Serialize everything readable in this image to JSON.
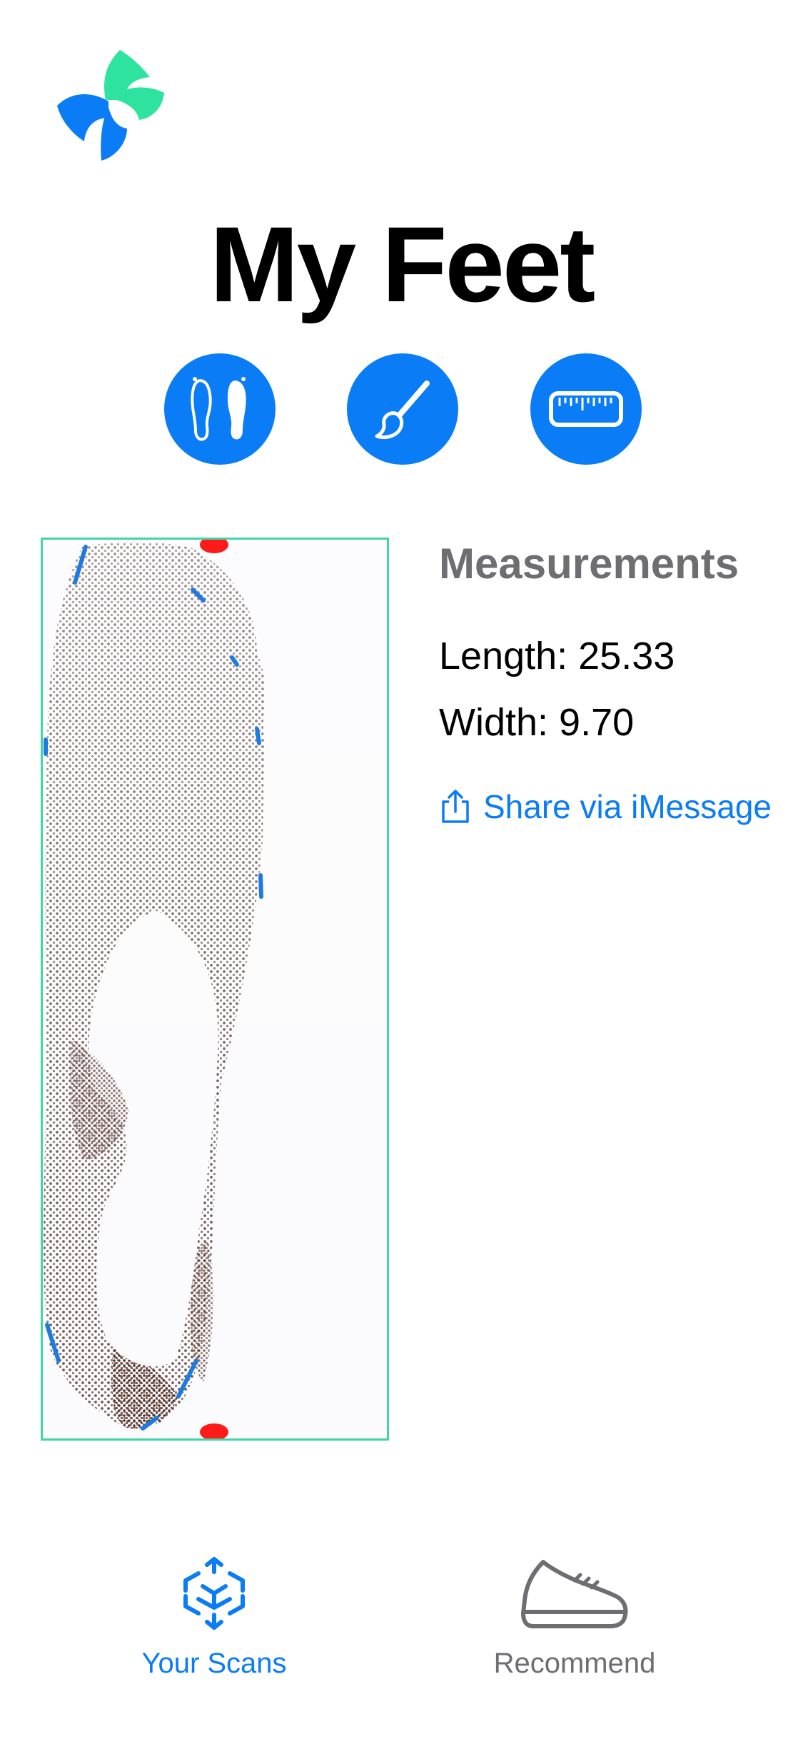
{
  "app": {
    "logo_icon": "app-logo",
    "accent_color": "#0a7cf6",
    "logo_colors": [
      "#2ee3a0",
      "#0a7cf6"
    ]
  },
  "header": {
    "title": "My Feet"
  },
  "actions": [
    {
      "icon": "feet-icon"
    },
    {
      "icon": "paintbrush-icon"
    },
    {
      "icon": "ruler-icon"
    }
  ],
  "scan": {
    "image": "foot-scan-point-cloud",
    "border_color": "#3fd6a6"
  },
  "measurements": {
    "title": "Measurements",
    "length": "Length: 25.33",
    "width": "Width: 9.70",
    "share_label": "Share via iMessage",
    "share_icon": "share-icon"
  },
  "tab_bar": {
    "tabs": [
      {
        "label": "Your Scans",
        "icon": "scan-cube-icon",
        "selected": true
      },
      {
        "label": "Recommend",
        "icon": "sneaker-icon",
        "selected": false
      }
    ]
  }
}
